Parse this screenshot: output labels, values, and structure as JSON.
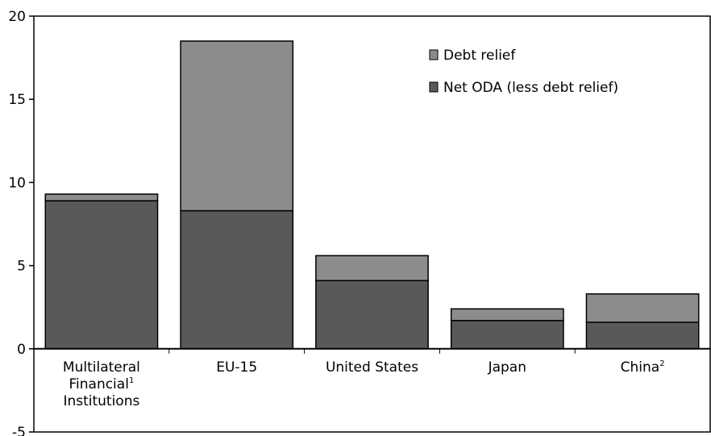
{
  "chart_data": {
    "type": "bar",
    "stacked": true,
    "categories": [
      "Multilateral Financial Institutions",
      "EU-15",
      "United States",
      "Japan",
      "China"
    ],
    "category_lines": [
      [
        {
          "text": "Multilateral",
          "sup": ""
        },
        {
          "text": "Financial",
          "sup": "1"
        },
        {
          "text": "Institutions",
          "sup": ""
        }
      ],
      [
        {
          "text": "EU-15",
          "sup": ""
        }
      ],
      [
        {
          "text": "United States",
          "sup": ""
        }
      ],
      [
        {
          "text": "Japan",
          "sup": ""
        }
      ],
      [
        {
          "text": "China",
          "sup": "2"
        }
      ]
    ],
    "series": [
      {
        "name": "Net ODA (less debt relief)",
        "values": [
          8.9,
          8.3,
          4.1,
          1.7,
          1.6
        ],
        "color": "#595959"
      },
      {
        "name": "Debt relief",
        "values": [
          0.4,
          10.2,
          1.5,
          0.7,
          1.7
        ],
        "color": "#8c8c8c"
      }
    ],
    "legend_order": [
      "Debt relief",
      "Net ODA (less debt relief)"
    ],
    "legend_position": "top-right",
    "ylim": [
      -5,
      20
    ],
    "yticks": [
      -5,
      0,
      5,
      10,
      15,
      20
    ],
    "grid": false,
    "title": "",
    "xlabel": "",
    "ylabel": ""
  }
}
